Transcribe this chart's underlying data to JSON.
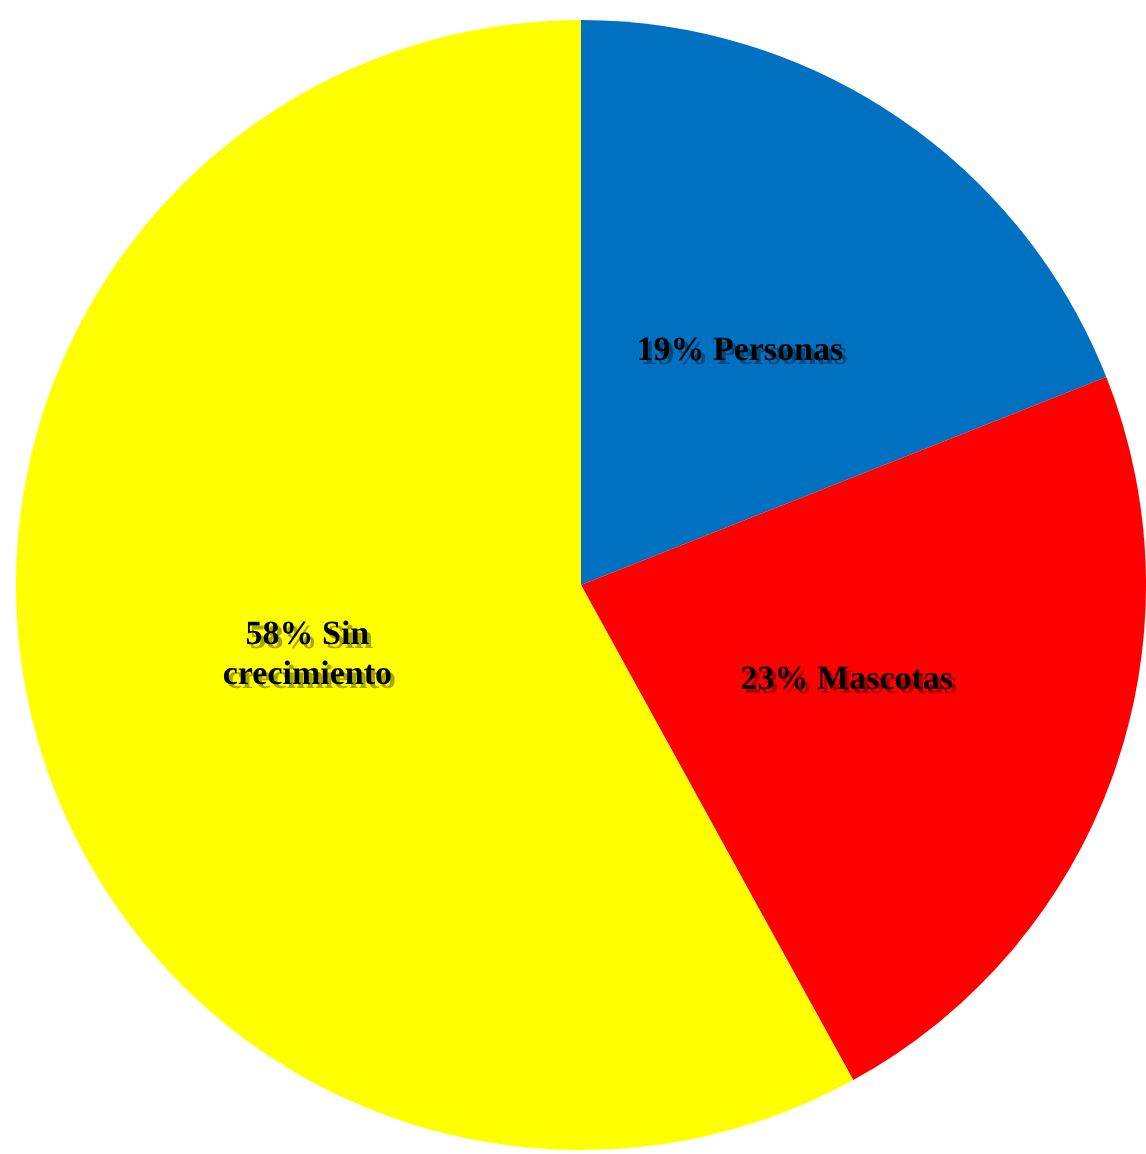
{
  "chart_data": {
    "type": "pie",
    "categories": [
      "19% Personas",
      "23% Mascotas",
      "58% Sin crecimiento"
    ],
    "values": [
      19,
      23,
      58
    ],
    "colors": [
      "#0070c0",
      "#ff0000",
      "#ffff00"
    ],
    "legend": false
  }
}
